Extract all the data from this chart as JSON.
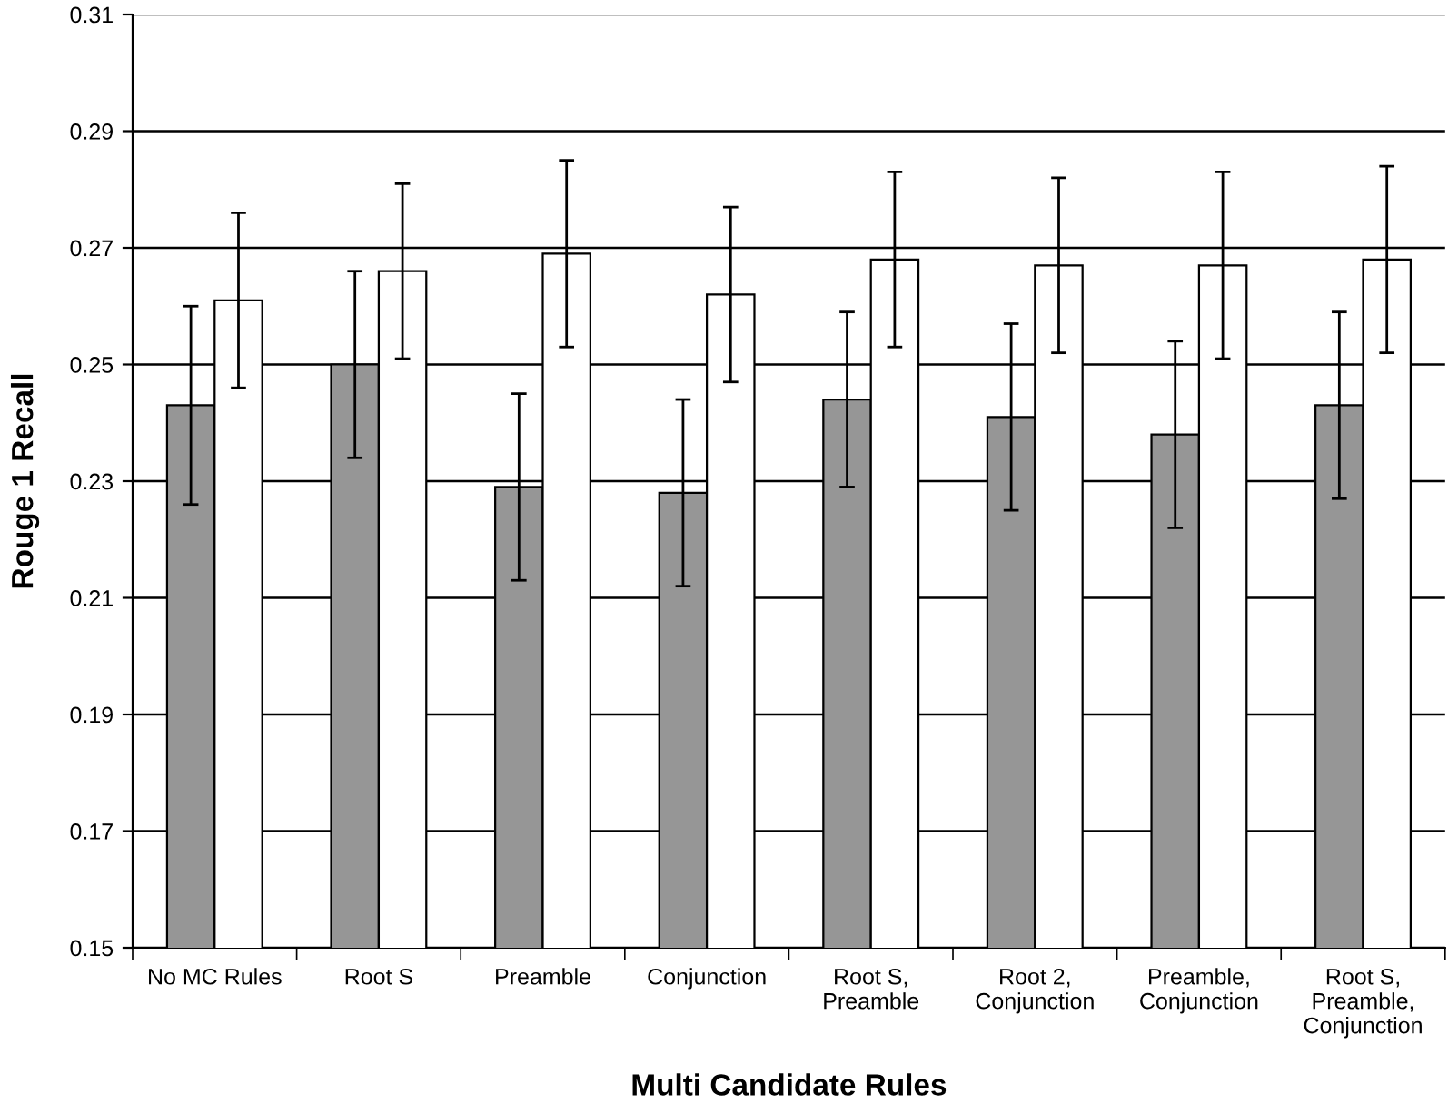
{
  "chart_data": {
    "type": "bar",
    "xlabel": "Multi Candidate Rules",
    "ylabel": "Rouge 1 Recall",
    "categories": [
      "No MC Rules",
      "Root S",
      "Preamble",
      "Conjunction",
      "Root S,\nPreamble",
      "Root 2,\nConjunction",
      "Preamble,\nConjunction",
      "Root S,\nPreamble,\nConjunction"
    ],
    "series": [
      {
        "color": "#969696",
        "values": [
          0.243,
          0.25,
          0.229,
          0.228,
          0.244,
          0.241,
          0.238,
          0.243
        ],
        "errors": [
          0.017,
          0.016,
          0.016,
          0.016,
          0.015,
          0.016,
          0.016,
          0.016
        ]
      },
      {
        "color": "#ffffff",
        "values": [
          0.261,
          0.266,
          0.269,
          0.262,
          0.268,
          0.267,
          0.267,
          0.268
        ],
        "errors": [
          0.015,
          0.015,
          0.016,
          0.015,
          0.015,
          0.015,
          0.016,
          0.016
        ]
      }
    ],
    "ylim": [
      0.15,
      0.31
    ],
    "yticks": [
      0.15,
      0.17,
      0.19,
      0.21,
      0.23,
      0.25,
      0.27,
      0.29,
      0.31
    ],
    "grid": "y"
  }
}
